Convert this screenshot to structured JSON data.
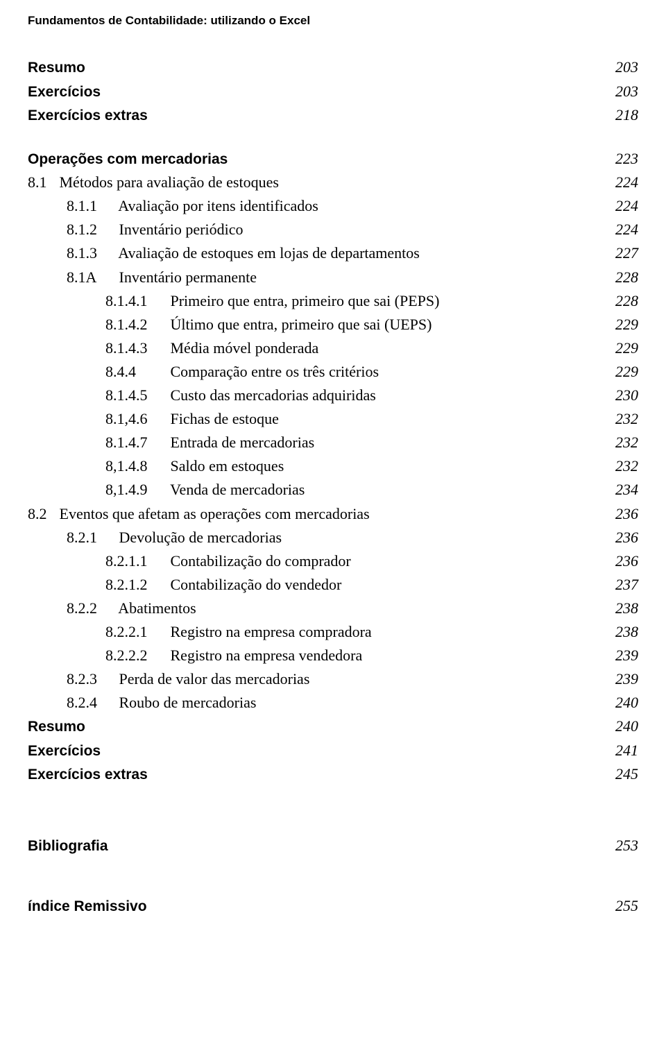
{
  "running_header": "Fundamentos de Contabilidade: utilizando o Excel",
  "colors": {
    "text": "#000000",
    "background": "#ffffff"
  },
  "top_group": [
    {
      "label": "Resumo",
      "page": "203",
      "bold": true,
      "indent": 0
    },
    {
      "label": "Exercícios",
      "page": "203",
      "bold": true,
      "indent": 0
    },
    {
      "label": "Exercícios extras",
      "page": "218",
      "bold": true,
      "indent": 0
    }
  ],
  "main_group": [
    {
      "label": "Operações com mercadorias",
      "page": "223",
      "bold": true,
      "indent": 0
    },
    {
      "num": "8.1",
      "title": "Métodos para avaliação de estoques",
      "page": "224",
      "indent": 1,
      "numclass": "n1"
    },
    {
      "num": "8.1.1",
      "title": "Avaliação por itens identificados",
      "page": "224",
      "indent": 2,
      "numclass": "n2"
    },
    {
      "num": "8.1.2",
      "title": "Inventário periódico",
      "page": "224",
      "indent": 2,
      "numclass": "n2"
    },
    {
      "num": "8.1.3",
      "title": "Avaliação de estoques em lojas de departamentos",
      "page": "227",
      "indent": 2,
      "numclass": "n2"
    },
    {
      "num": "8.1A",
      "title": "Inventário permanente",
      "page": "228",
      "indent": 2,
      "numclass": "n2"
    },
    {
      "num": "8.1.4.1",
      "title": "Primeiro que entra, primeiro que sai (PEPS)",
      "page": "228",
      "indent": 3,
      "numclass": "n3"
    },
    {
      "num": "8.1.4.2",
      "title": "Último que entra, primeiro que sai (UEPS)",
      "page": "229",
      "indent": 3,
      "numclass": "n3"
    },
    {
      "num": "8.1.4.3",
      "title": "Média móvel ponderada",
      "page": "229",
      "indent": 3,
      "numclass": "n3"
    },
    {
      "num": "8.4.4",
      "title": "Comparação entre os três critérios",
      "page": "229",
      "indent": 3,
      "numclass": "n3"
    },
    {
      "num": "8.1.4.5",
      "title": "Custo das mercadorias adquiridas",
      "page": "230",
      "indent": 3,
      "numclass": "n3"
    },
    {
      "num": "8.1,4.6",
      "title": "Fichas de estoque",
      "page": "232",
      "indent": 3,
      "numclass": "n3"
    },
    {
      "num": "8.1.4.7",
      "title": "Entrada de mercadorias",
      "page": "232",
      "indent": 3,
      "numclass": "n3"
    },
    {
      "num": "8,1.4.8",
      "title": "Saldo em estoques",
      "page": "232",
      "indent": 3,
      "numclass": "n3"
    },
    {
      "num": "8,1.4.9",
      "title": "Venda de mercadorias",
      "page": "234",
      "indent": 3,
      "numclass": "n3"
    },
    {
      "num": "8.2",
      "title": "Eventos que afetam as operações com mercadorias",
      "page": "236",
      "indent": 1,
      "numclass": "n1"
    },
    {
      "num": "8.2.1",
      "title": "Devolução de mercadorias",
      "page": "236",
      "indent": 2,
      "numclass": "n2"
    },
    {
      "num": "8.2.1.1",
      "title": "Contabilização do comprador",
      "page": "236",
      "indent": 3,
      "numclass": "n3"
    },
    {
      "num": "8.2.1.2",
      "title": "Contabilização do vendedor",
      "page": "237",
      "indent": 3,
      "numclass": "n3"
    },
    {
      "num": "8.2.2",
      "title": "Abatimentos",
      "page": "238",
      "indent": 2,
      "numclass": "n2"
    },
    {
      "num": "8.2.2.1",
      "title": "Registro na empresa compradora",
      "page": "238",
      "indent": 3,
      "numclass": "n3"
    },
    {
      "num": "8.2.2.2",
      "title": "Registro na empresa vendedora",
      "page": "239",
      "indent": 3,
      "numclass": "n3"
    },
    {
      "num": "8.2.3",
      "title": "Perda de valor das mercadorias",
      "page": "239",
      "indent": 2,
      "numclass": "n2"
    },
    {
      "num": "8.2.4",
      "title": "Roubo de mercadorias",
      "page": "240",
      "indent": 2,
      "numclass": "n2"
    },
    {
      "label": "Resumo",
      "page": "240",
      "bold": true,
      "indent": 0
    },
    {
      "label": "Exercícios",
      "page": "241",
      "bold": true,
      "indent": 0
    },
    {
      "label": "Exercícios extras",
      "page": "245",
      "bold": true,
      "indent": 0
    }
  ],
  "back_matter": [
    {
      "label": "Bibliografia",
      "page": "253"
    },
    {
      "label": "índice Remissivo",
      "page": "255"
    }
  ]
}
